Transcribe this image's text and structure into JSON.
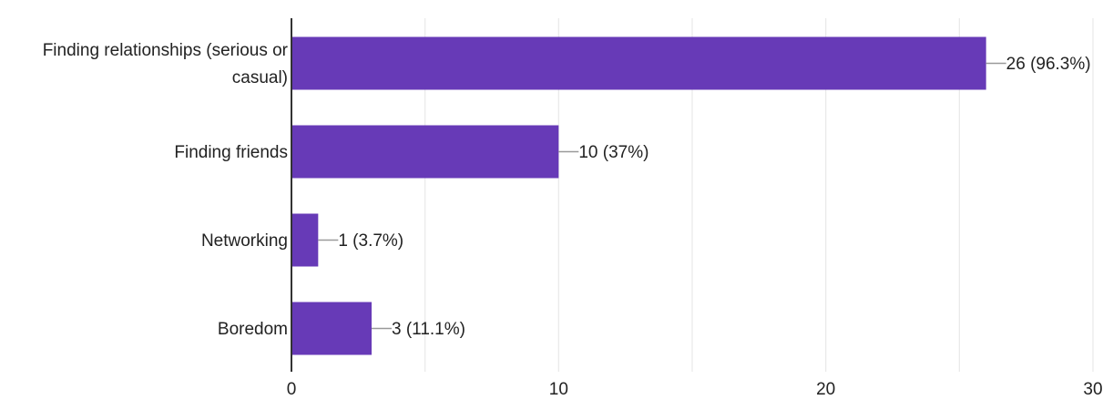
{
  "chart_data": {
    "type": "bar",
    "orientation": "horizontal",
    "categories": [
      [
        "Finding relationships (serious or",
        "casual)"
      ],
      [
        "Finding friends"
      ],
      [
        "Networking"
      ],
      [
        "Boredom"
      ]
    ],
    "values": [
      26,
      10,
      1,
      3
    ],
    "data_labels": [
      "26 (96.3%)",
      "10 (37%)",
      "1 (3.7%)",
      "3 (11.1%)"
    ],
    "xlim": [
      0,
      30
    ],
    "x_ticks": [
      0,
      10,
      20,
      30
    ],
    "x_tick_labels": [
      "0",
      "10",
      "20",
      "30"
    ],
    "minor_gridlines": true,
    "grid": true,
    "colors": {
      "bar": "#673ab7",
      "grid": "#e8e8e8",
      "axis": "#333333",
      "text": "#222222",
      "leader": "#999999"
    }
  }
}
